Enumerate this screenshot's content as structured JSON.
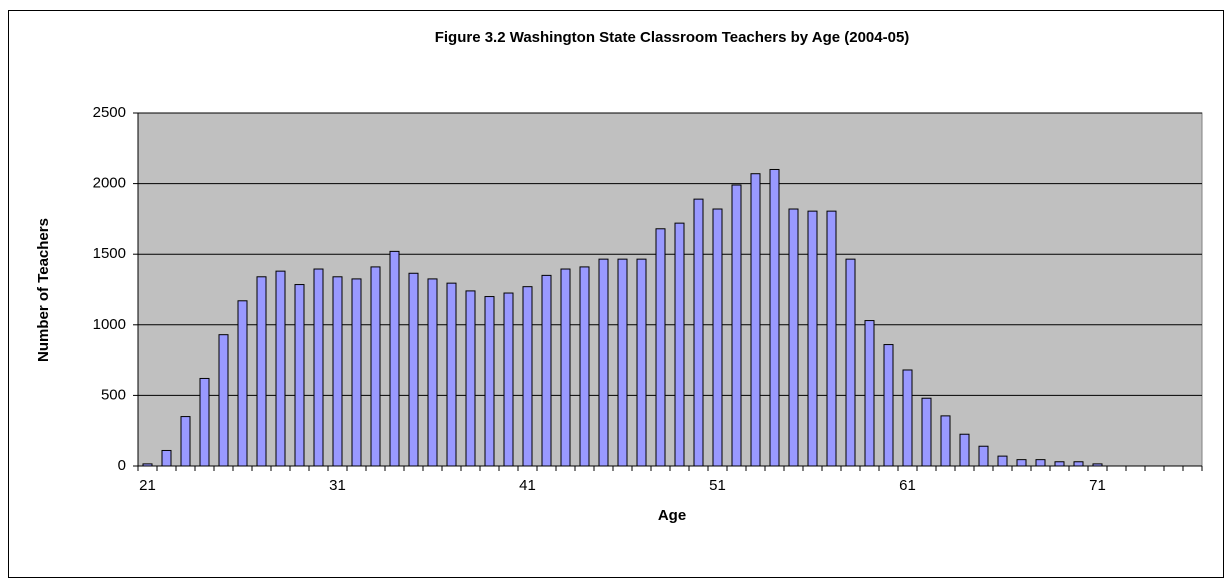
{
  "chart_data": {
    "type": "bar",
    "title": "Figure 3.2  Washington State Classroom Teachers by Age (2004-05)",
    "x_label": "Age",
    "y_label": "Number of Teachers",
    "categories": [
      "21",
      null,
      null,
      null,
      null,
      null,
      null,
      null,
      null,
      null,
      "31",
      null,
      null,
      null,
      null,
      null,
      null,
      null,
      null,
      null,
      "41",
      null,
      null,
      null,
      null,
      null,
      null,
      null,
      null,
      null,
      "51",
      null,
      null,
      null,
      null,
      null,
      null,
      null,
      null,
      null,
      "61",
      null,
      null,
      null,
      null,
      null,
      null,
      null,
      null,
      null,
      "71",
      null,
      null,
      null,
      null,
      null
    ],
    "values": [
      15,
      110,
      350,
      620,
      930,
      1170,
      1340,
      1380,
      1285,
      1395,
      1340,
      1325,
      1410,
      1520,
      1365,
      1325,
      1295,
      1240,
      1200,
      1225,
      1270,
      1350,
      1395,
      1410,
      1465,
      1465,
      1465,
      1680,
      1720,
      1890,
      1820,
      1990,
      2070,
      2100,
      1820,
      1805,
      1805,
      1465,
      1030,
      860,
      680,
      480,
      355,
      225,
      140,
      70,
      45,
      45,
      30,
      30,
      15,
      0,
      0,
      0,
      0,
      0
    ],
    "color": "#9999ff",
    "background": "#c0c0c0",
    "ylim": [
      0,
      2500
    ],
    "yticks": [
      0,
      500,
      1000,
      1500,
      2000,
      2500
    ],
    "grid": true
  }
}
